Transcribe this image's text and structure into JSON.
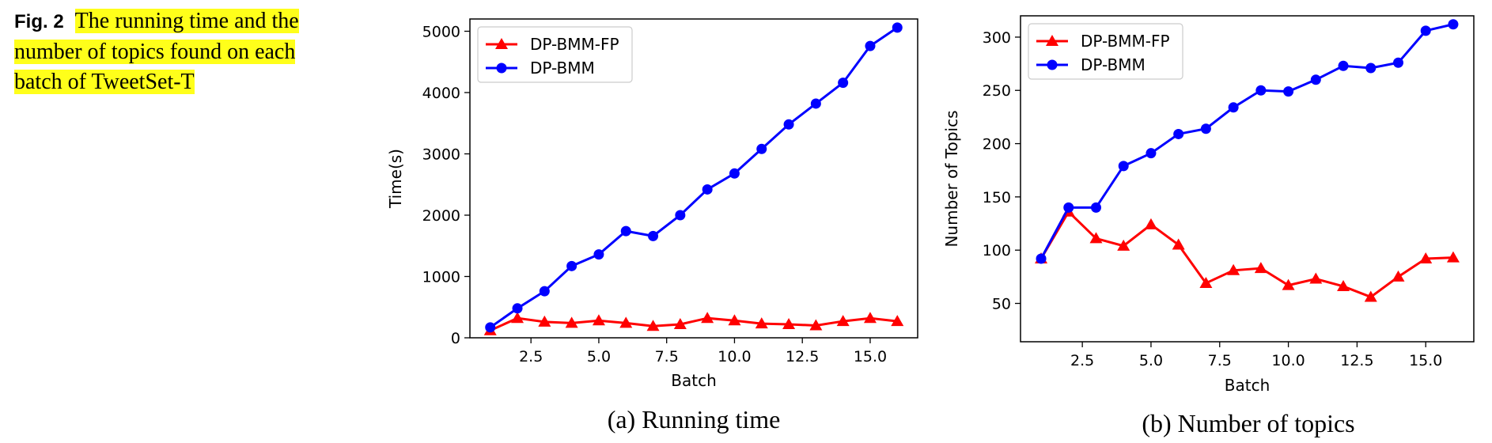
{
  "caption": {
    "label": "Fig. 2",
    "line1": "The running time and the",
    "line2": "number of topics found on each",
    "line3": "batch of TweetSet-T"
  },
  "colors": {
    "fp": "#ff0000",
    "bmm": "#0000ff"
  },
  "chart_data": [
    {
      "type": "line",
      "caption": "(a) Running time",
      "xlabel": "Batch",
      "ylabel": "Time(s)",
      "xlim": [
        0.25,
        16.75
      ],
      "ylim": [
        0,
        5200
      ],
      "xticks": [
        2.5,
        5.0,
        7.5,
        10.0,
        12.5,
        15.0
      ],
      "xtick_labels": [
        "2.5",
        "5.0",
        "7.5",
        "10.0",
        "12.5",
        "15.0"
      ],
      "yticks": [
        0,
        1000,
        2000,
        3000,
        4000,
        5000
      ],
      "ytick_labels": [
        "0",
        "1000",
        "2000",
        "3000",
        "4000",
        "5000"
      ],
      "legend_position": "top-left",
      "x": [
        1,
        2,
        3,
        4,
        5,
        6,
        7,
        8,
        9,
        10,
        11,
        12,
        13,
        14,
        15,
        16
      ],
      "series": [
        {
          "name": "DP-BMM-FP",
          "marker": "triangle",
          "color": "#ff0000",
          "values": [
            120,
            320,
            260,
            240,
            280,
            240,
            190,
            220,
            320,
            280,
            230,
            220,
            200,
            270,
            320,
            270
          ]
        },
        {
          "name": "DP-BMM",
          "marker": "circle",
          "color": "#0000ff",
          "values": [
            170,
            480,
            760,
            1170,
            1360,
            1740,
            1660,
            2000,
            2420,
            2680,
            3080,
            3480,
            3820,
            4160,
            4760,
            5060
          ]
        }
      ]
    },
    {
      "type": "line",
      "caption": "(b) Number of topics",
      "xlabel": "Batch",
      "ylabel": "Number of Topics",
      "xlim": [
        0.25,
        16.75
      ],
      "ylim": [
        14,
        320
      ],
      "xticks": [
        2.5,
        5.0,
        7.5,
        10.0,
        12.5,
        15.0
      ],
      "xtick_labels": [
        "2.5",
        "5.0",
        "7.5",
        "10.0",
        "12.5",
        "15.0"
      ],
      "yticks": [
        50,
        100,
        150,
        200,
        250,
        300
      ],
      "ytick_labels": [
        "50",
        "100",
        "150",
        "200",
        "250",
        "300"
      ],
      "legend_position": "top-left",
      "x": [
        1,
        2,
        3,
        4,
        5,
        6,
        7,
        8,
        9,
        10,
        11,
        12,
        13,
        14,
        15,
        16
      ],
      "series": [
        {
          "name": "DP-BMM-FP",
          "marker": "triangle",
          "color": "#ff0000",
          "values": [
            92,
            136,
            111,
            104,
            124,
            105,
            69,
            81,
            83,
            67,
            73,
            66,
            56,
            75,
            92,
            93
          ]
        },
        {
          "name": "DP-BMM",
          "marker": "circle",
          "color": "#0000ff",
          "values": [
            92,
            140,
            140,
            179,
            191,
            209,
            214,
            234,
            250,
            249,
            260,
            273,
            271,
            276,
            306,
            312
          ]
        }
      ]
    }
  ]
}
